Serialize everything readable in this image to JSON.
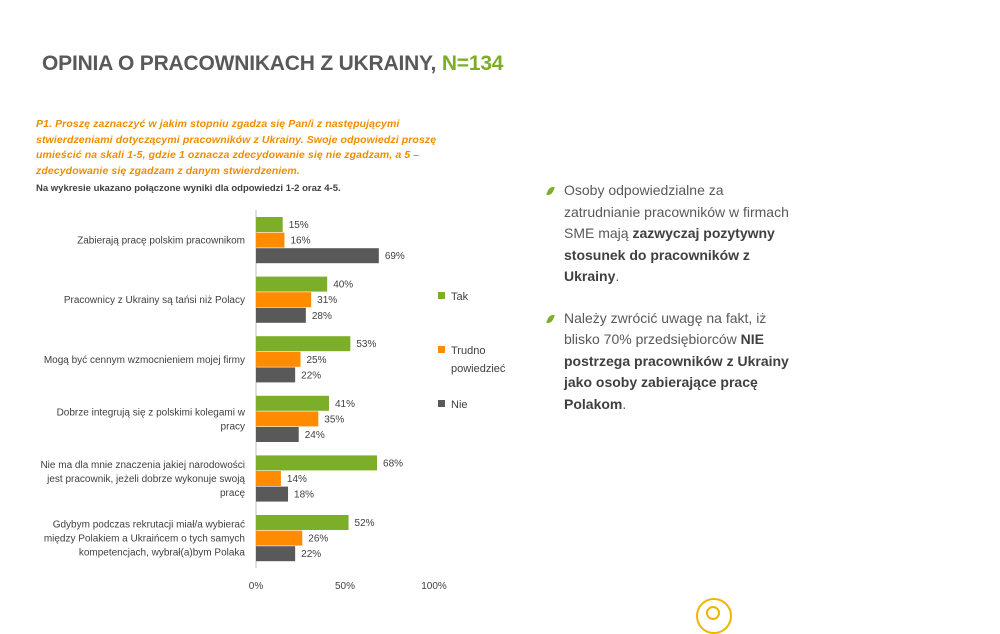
{
  "header": {
    "title_main": "OPINIA O PRACOWNIKACH Z UKRAINY,",
    "title_accent": "N=134"
  },
  "question": {
    "text": "P1. Proszę zaznaczyć w jakim stopniu zgadza się Pan/i z następującymi stwierdzeniami dotyczącymi pracowników z Ukrainy. Swoje odpowiedzi proszę umieścić na skali 1-5, gdzie 1 oznacza zdecydowanie się nie zgadzam, a 5 – zdecydowanie się zgadzam z danym stwierdzeniem.",
    "note": "Na wykresie ukazano połączone wyniki dla odpowiedzi 1-2 oraz 4-5."
  },
  "chart_data": {
    "type": "bar",
    "orientation": "horizontal",
    "categories": [
      [
        "Zabierają pracę polskim pracownikom"
      ],
      [
        "Pracownicy z Ukrainy są tańsi niż Polacy"
      ],
      [
        "Mogą być cennym wzmocnieniem mojej firmy"
      ],
      [
        "Dobrze integrują się z polskimi kolegami w",
        "pracy"
      ],
      [
        "Nie ma dla mnie znaczenia jakiej narodowości",
        "jest pracownik, jeżeli dobrze wykonuje swoją",
        "pracę"
      ],
      [
        "Gdybym podczas rekrutacji miał/a wybierać",
        "między Polakiem a Ukraińcem o tych samych",
        "kompetencjach, wybrał(a)bym Polaka"
      ]
    ],
    "series": [
      {
        "name": "Tak",
        "color": "#7cae2a",
        "values": [
          15,
          40,
          53,
          41,
          68,
          52
        ]
      },
      {
        "name": "Trudno powiedzieć",
        "legend_lines": [
          "Trudno",
          "powiedzieć"
        ],
        "color": "#ff8c00",
        "values": [
          16,
          31,
          25,
          35,
          14,
          26
        ]
      },
      {
        "name": "Nie",
        "color": "#595959",
        "values": [
          69,
          28,
          22,
          24,
          18,
          22
        ]
      }
    ],
    "xlim": [
      0,
      100
    ],
    "ticks": [
      "0%",
      "50%",
      "100%"
    ],
    "value_suffix": "%",
    "legend_position": "right"
  },
  "bullets": [
    {
      "parts": [
        {
          "text": "Osoby odpowiedzialne za zatrudnianie pracowników w firmach SME mają ",
          "bold": false
        },
        {
          "text": "zazwyczaj pozytywny stosunek do pracowników z Ukrainy",
          "bold": true
        },
        {
          "text": ".",
          "bold": false
        }
      ]
    },
    {
      "parts": [
        {
          "text": "Należy zwrócić uwagę na fakt, iż blisko 70% przedsiębiorców ",
          "bold": false
        },
        {
          "text": "NIE postrzega pracowników z Ukrainy jako osoby zabierające pracę Polakom",
          "bold": true
        },
        {
          "text": ".",
          "bold": false
        }
      ]
    }
  ]
}
